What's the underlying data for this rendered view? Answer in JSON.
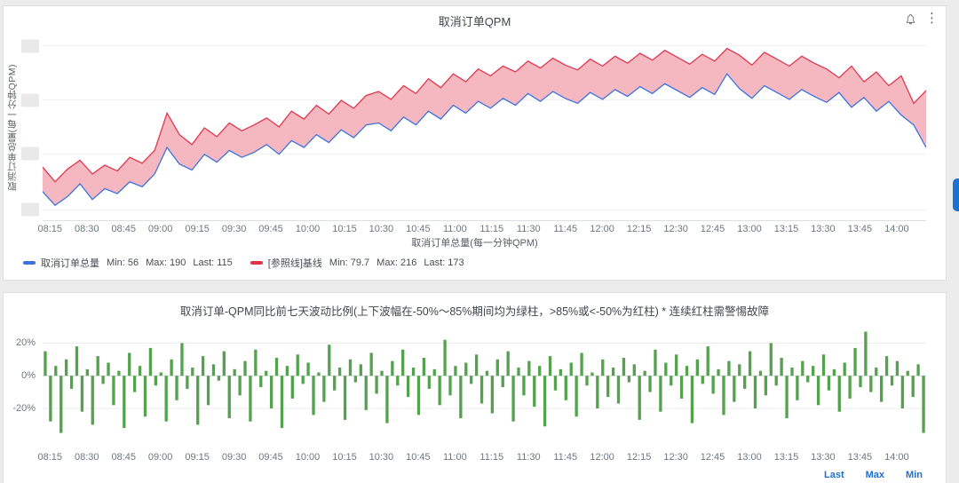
{
  "panel1": {
    "title": "取消订单QPM",
    "y_axis_label": "取消订单总量(每一分钟QPM)",
    "x_axis_label": "取消订单总量(每一分钟QPM)",
    "icons": {
      "kebab": "⋮",
      "bell": "bell-icon"
    },
    "x_ticks": [
      "08:15",
      "08:30",
      "08:45",
      "09:00",
      "09:15",
      "09:30",
      "09:45",
      "10:00",
      "10:15",
      "10:30",
      "10:45",
      "11:00",
      "11:15",
      "11:30",
      "11:45",
      "12:00",
      "12:15",
      "12:30",
      "12:45",
      "13:00",
      "13:15",
      "13:30",
      "13:45",
      "14:00"
    ],
    "legend": [
      {
        "color": "#3d71d9",
        "label": "取消订单总量",
        "min": "Min: 56",
        "max": "Max: 190",
        "last": "Last: 115"
      },
      {
        "color": "#e0364c",
        "label": "[参照线]基线",
        "min": "Min: 79.7",
        "max": "Max: 216",
        "last": "Last: 173"
      }
    ]
  },
  "panel2": {
    "title": "取消订单-QPM同比前七天波动比例(上下波幅在-50%～85%期间均为绿柱，>85%或<-50%为红柱) * 连续红柱需警惕故障",
    "y_ticks": [
      {
        "label": "20%",
        "value": 20
      },
      {
        "label": "0%",
        "value": 0
      },
      {
        "label": "-20%",
        "value": -20
      }
    ],
    "x_ticks": [
      "08:15",
      "08:30",
      "08:45",
      "09:00",
      "09:15",
      "09:30",
      "09:45",
      "10:00",
      "10:15",
      "10:30",
      "10:45",
      "11:00",
      "11:15",
      "11:30",
      "11:45",
      "12:00",
      "12:15",
      "12:30",
      "12:45",
      "13:00",
      "13:15",
      "13:30",
      "13:45",
      "14:00"
    ],
    "legend_headers": [
      "Last",
      "Max",
      "Min"
    ]
  },
  "chart_data": [
    {
      "type": "line",
      "title": "取消订单QPM",
      "x_start": "08:12",
      "x_end": "14:12",
      "step_minutes": 5,
      "ylim": [
        40,
        230
      ],
      "fill_color": "#f5b8c1",
      "series": [
        {
          "name": "[参照线]基线",
          "color": "#e0364c",
          "min": 79.7,
          "max": 216,
          "last": 173,
          "values": [
            95,
            80,
            93,
            102,
            88,
            97,
            91,
            105,
            99,
            112,
            150,
            128,
            118,
            135,
            126,
            140,
            132,
            138,
            145,
            136,
            152,
            144,
            158,
            149,
            163,
            155,
            168,
            172,
            164,
            178,
            170,
            185,
            176,
            190,
            182,
            195,
            188,
            198,
            192,
            203,
            196,
            206,
            199,
            194,
            205,
            198,
            208,
            201,
            211,
            204,
            214,
            207,
            200,
            210,
            203,
            216,
            209,
            199,
            212,
            205,
            198,
            208,
            201,
            195,
            186,
            198,
            182,
            192,
            178,
            188,
            160,
            173
          ]
        },
        {
          "name": "取消订单总量",
          "color": "#3d71d9",
          "min": 56,
          "max": 190,
          "last": 115,
          "values": [
            70,
            56,
            65,
            78,
            62,
            73,
            68,
            80,
            75,
            88,
            115,
            98,
            92,
            108,
            100,
            112,
            105,
            110,
            118,
            108,
            122,
            115,
            128,
            120,
            133,
            125,
            138,
            140,
            132,
            146,
            138,
            152,
            144,
            158,
            150,
            162,
            155,
            165,
            158,
            170,
            162,
            172,
            165,
            160,
            171,
            164,
            174,
            167,
            177,
            170,
            180,
            173,
            166,
            176,
            169,
            190,
            175,
            165,
            178,
            171,
            164,
            174,
            167,
            161,
            171,
            156,
            166,
            152,
            162,
            148,
            138,
            115
          ]
        }
      ]
    },
    {
      "type": "bar",
      "title": "取消订单-QPM同比前七天波动比例",
      "unit": "%",
      "x_start": "08:12",
      "x_end": "14:12",
      "ylim": [
        -45,
        30
      ],
      "grid_values": [
        20,
        0,
        -20
      ],
      "color": "#55a24e",
      "alert_color": "#e0364c",
      "threshold_high": 85,
      "threshold_low": -50,
      "values": [
        15,
        -28,
        6,
        -35,
        10,
        -8,
        18,
        -22,
        4,
        -30,
        12,
        -5,
        8,
        -18,
        3,
        -32,
        14,
        -10,
        6,
        -25,
        17,
        -6,
        2,
        -28,
        10,
        -15,
        20,
        -8,
        5,
        -30,
        12,
        -18,
        7,
        -3,
        15,
        -26,
        4,
        -12,
        9,
        -28,
        16,
        -7,
        3,
        -20,
        11,
        -32,
        6,
        -14,
        13,
        -5,
        8,
        -24,
        2,
        -16,
        19,
        -9,
        5,
        -27,
        10,
        -4,
        7,
        -21,
        14,
        -11,
        3,
        -29,
        9,
        -6,
        16,
        -13,
        5,
        -24,
        11,
        -8,
        4,
        -18,
        22,
        -12,
        6,
        -26,
        8,
        -5,
        13,
        -17,
        3,
        -23,
        10,
        -7,
        15,
        -28,
        5,
        -12,
        9,
        -19,
        6,
        -31,
        12,
        -9,
        4,
        -15,
        8,
        -25,
        14,
        -6,
        2,
        -20,
        10,
        -13,
        5,
        -17,
        11,
        -4,
        7,
        -27,
        3,
        -10,
        16,
        -22,
        8,
        -6,
        13,
        -14,
        6,
        -29,
        10,
        -5,
        18,
        -11,
        4,
        -24,
        9,
        -16,
        7,
        -8,
        15,
        -20,
        3,
        -12,
        20,
        -6,
        11,
        -26,
        5,
        -15,
        9,
        -4,
        6,
        -18,
        13,
        -9,
        4,
        -22,
        8,
        -14,
        17,
        -7,
        27,
        -10,
        5,
        -16,
        12,
        -6,
        9,
        -20,
        3,
        -13,
        7,
        -35
      ]
    }
  ]
}
